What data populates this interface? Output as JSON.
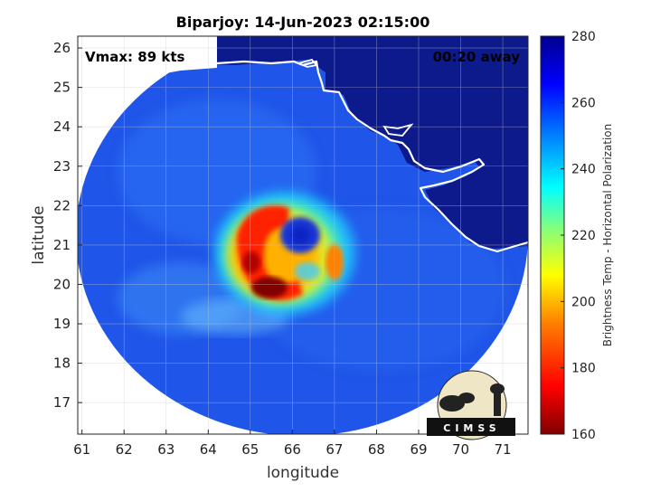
{
  "title": "Biparjoy: 14-Jun-2023 02:15:00",
  "annotations": {
    "vmax": "Vmax: 89 kts",
    "away": "00:20 away"
  },
  "axes": {
    "xlabel": "longitude",
    "ylabel": "latitude",
    "x_ticks": [
      "61",
      "62",
      "63",
      "64",
      "65",
      "66",
      "67",
      "68",
      "69",
      "70",
      "71"
    ],
    "y_ticks": [
      "17",
      "18",
      "19",
      "20",
      "21",
      "22",
      "23",
      "24",
      "25",
      "26"
    ],
    "xlim": [
      60.9,
      71.6
    ],
    "ylim": [
      16.2,
      26.3
    ],
    "grid": true
  },
  "colorbar": {
    "label": "Brightness Temp - Horizontal Polarization",
    "ticks": [
      "160",
      "180",
      "200",
      "220",
      "240",
      "260",
      "280"
    ],
    "range": [
      160,
      280
    ],
    "colors": [
      "#800000",
      "#ff0000",
      "#ff8000",
      "#ffff00",
      "#80ff80",
      "#00ffff",
      "#0080ff",
      "#0000ff",
      "#00008f"
    ]
  },
  "logo": {
    "text": "CIMSS"
  },
  "colors": {
    "land": "#101a8c",
    "coast": "#ffffff",
    "ocean_scan": "#1e5ef0"
  }
}
